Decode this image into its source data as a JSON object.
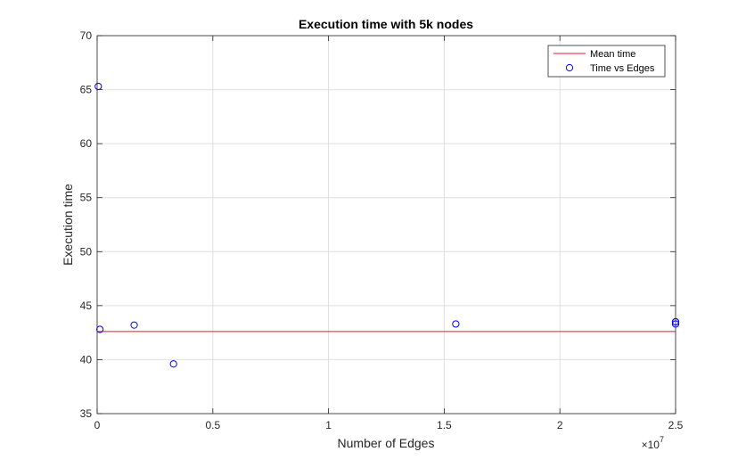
{
  "chart_data": {
    "type": "scatter",
    "title": "Execution time with 5k nodes",
    "xlabel": "Number of Edges",
    "ylabel": "Execution time",
    "x_exponent_label": "×10",
    "x_exponent": "7",
    "xlim": [
      0,
      2.5
    ],
    "ylim": [
      35,
      70
    ],
    "xticks": [
      0,
      0.5,
      1,
      1.5,
      2,
      2.5
    ],
    "xtick_labels": [
      "0",
      "0.5",
      "1",
      "1.5",
      "2",
      "2.5"
    ],
    "yticks": [
      35,
      40,
      45,
      50,
      55,
      60,
      65,
      70
    ],
    "ytick_labels": [
      "35",
      "40",
      "45",
      "50",
      "55",
      "60",
      "65",
      "70"
    ],
    "grid": true,
    "legend_position": "top-right",
    "series": [
      {
        "name": "Mean time",
        "kind": "line",
        "color": "#e8192c",
        "x": [
          0,
          2.5
        ],
        "y": [
          42.6,
          42.6
        ]
      },
      {
        "name": "Time vs Edges",
        "kind": "scatter",
        "color": "#0000ff",
        "marker": "circle-open",
        "x": [
          0.005,
          0.012,
          0.16,
          0.33,
          1.55,
          2.5,
          2.5,
          2.5
        ],
        "y": [
          65.3,
          42.8,
          43.2,
          39.6,
          43.3,
          43.5,
          43.3,
          43.5
        ]
      }
    ]
  }
}
